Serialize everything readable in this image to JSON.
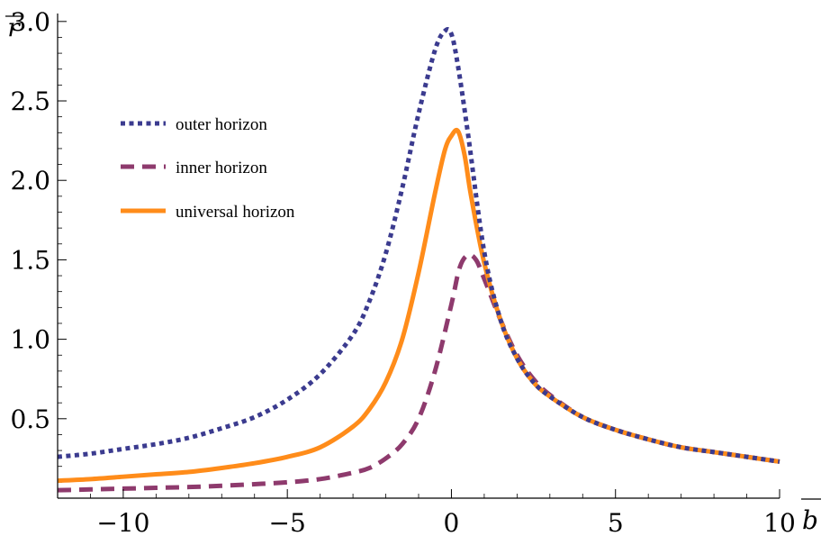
{
  "chart_data": {
    "type": "line",
    "xlabel": "b",
    "ylabel": "r",
    "xlim": [
      -12,
      10
    ],
    "ylim": [
      0,
      3.05
    ],
    "xticks": [
      -10,
      -5,
      0,
      5,
      10
    ],
    "xtick_labels": [
      "−10",
      "−5",
      "0",
      "5",
      "10"
    ],
    "yticks": [
      0.5,
      1.0,
      1.5,
      2.0,
      2.5,
      3.0
    ],
    "ytick_labels": [
      "0.5",
      "1.0",
      "1.5",
      "2.0",
      "2.5",
      "3.0"
    ],
    "legend_position": "top-left",
    "grid": false,
    "series": [
      {
        "name": "outer horizon",
        "color": "#3B3B8F",
        "style": "dotted",
        "x": [
          -12,
          -11,
          -10,
          -9,
          -8,
          -7,
          -6,
          -5,
          -4,
          -3,
          -2.5,
          -2,
          -1.5,
          -1,
          -0.5,
          -0.2,
          0,
          0.2,
          0.5,
          1,
          1.5,
          2,
          2.5,
          3,
          4,
          5,
          6,
          7,
          8,
          9,
          10
        ],
        "y": [
          0.26,
          0.28,
          0.31,
          0.34,
          0.38,
          0.44,
          0.51,
          0.62,
          0.78,
          1.03,
          1.24,
          1.54,
          1.95,
          2.42,
          2.82,
          2.94,
          2.92,
          2.72,
          2.3,
          1.55,
          1.12,
          0.88,
          0.73,
          0.64,
          0.51,
          0.43,
          0.37,
          0.32,
          0.29,
          0.26,
          0.23
        ]
      },
      {
        "name": "inner horizon",
        "color": "#8E3A6D",
        "style": "dashed",
        "x": [
          -12,
          -11,
          -10,
          -9,
          -8,
          -7,
          -6,
          -5,
          -4,
          -3,
          -2.5,
          -2,
          -1.5,
          -1,
          -0.5,
          0,
          0.25,
          0.5,
          0.75,
          1,
          1.5,
          2,
          2.5,
          3,
          4,
          5,
          6,
          7,
          8,
          9,
          10
        ],
        "y": [
          0.05,
          0.055,
          0.06,
          0.065,
          0.07,
          0.078,
          0.088,
          0.1,
          0.12,
          0.16,
          0.19,
          0.25,
          0.34,
          0.5,
          0.8,
          1.22,
          1.45,
          1.53,
          1.5,
          1.38,
          1.12,
          0.9,
          0.75,
          0.65,
          0.51,
          0.43,
          0.37,
          0.32,
          0.29,
          0.26,
          0.23
        ]
      },
      {
        "name": "universal horizon",
        "color": "#FF8C1A",
        "style": "solid",
        "x": [
          -12,
          -11,
          -10,
          -9,
          -8,
          -7,
          -6,
          -5,
          -4,
          -3,
          -2.5,
          -2,
          -1.5,
          -1,
          -0.5,
          -0.2,
          0,
          0.2,
          0.4,
          0.6,
          1,
          1.5,
          2,
          2.5,
          3,
          4,
          5,
          6,
          7,
          8,
          9,
          10
        ],
        "y": [
          0.11,
          0.12,
          0.135,
          0.15,
          0.165,
          0.19,
          0.22,
          0.26,
          0.32,
          0.45,
          0.56,
          0.73,
          1.0,
          1.42,
          1.92,
          2.19,
          2.28,
          2.31,
          2.16,
          1.9,
          1.48,
          1.12,
          0.88,
          0.73,
          0.64,
          0.51,
          0.43,
          0.37,
          0.32,
          0.29,
          0.26,
          0.23
        ]
      }
    ]
  }
}
